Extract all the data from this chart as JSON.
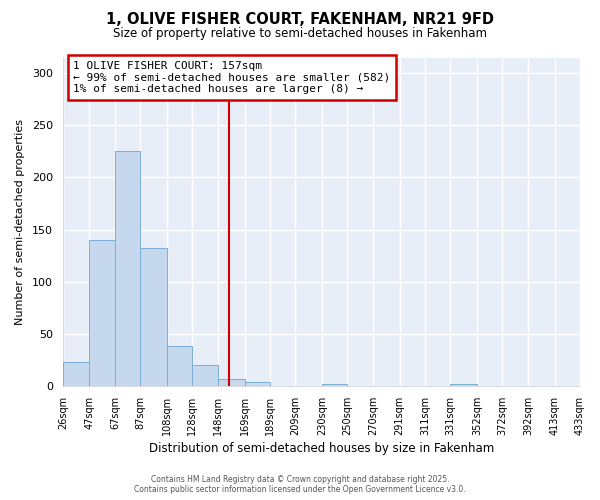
{
  "title": "1, OLIVE FISHER COURT, FAKENHAM, NR21 9FD",
  "subtitle": "Size of property relative to semi-detached houses in Fakenham",
  "xlabel": "Distribution of semi-detached houses by size in Fakenham",
  "ylabel": "Number of semi-detached properties",
  "bar_values": [
    23,
    140,
    225,
    132,
    38,
    20,
    7,
    4,
    0,
    0,
    2,
    0,
    0,
    0,
    0,
    2,
    0,
    0,
    0,
    0
  ],
  "bin_edges": [
    26,
    47,
    67,
    87,
    108,
    128,
    148,
    169,
    189,
    209,
    230,
    250,
    270,
    291,
    311,
    331,
    352,
    372,
    392,
    413,
    433
  ],
  "tick_labels": [
    "26sqm",
    "47sqm",
    "67sqm",
    "87sqm",
    "108sqm",
    "128sqm",
    "148sqm",
    "169sqm",
    "189sqm",
    "209sqm",
    "230sqm",
    "250sqm",
    "270sqm",
    "291sqm",
    "311sqm",
    "331sqm",
    "352sqm",
    "372sqm",
    "392sqm",
    "413sqm",
    "433sqm"
  ],
  "bar_color": "#c5d8ee",
  "bar_edge_color": "#7aafd4",
  "vline_x": 157,
  "vline_color": "#cc0000",
  "ylim": [
    0,
    315
  ],
  "yticks": [
    0,
    50,
    100,
    150,
    200,
    250,
    300
  ],
  "annotation_title": "1 OLIVE FISHER COURT: 157sqm",
  "annotation_line1": "← 99% of semi-detached houses are smaller (582)",
  "annotation_line2": "1% of semi-detached houses are larger (8) →",
  "annotation_box_facecolor": "#ffffff",
  "annotation_box_edgecolor": "#cc0000",
  "footer1": "Contains HM Land Registry data © Crown copyright and database right 2025.",
  "footer2": "Contains public sector information licensed under the Open Government Licence v3.0.",
  "fig_facecolor": "#ffffff",
  "ax_facecolor": "#e8eef7",
  "grid_color": "#ffffff",
  "spine_color": "#cccccc"
}
